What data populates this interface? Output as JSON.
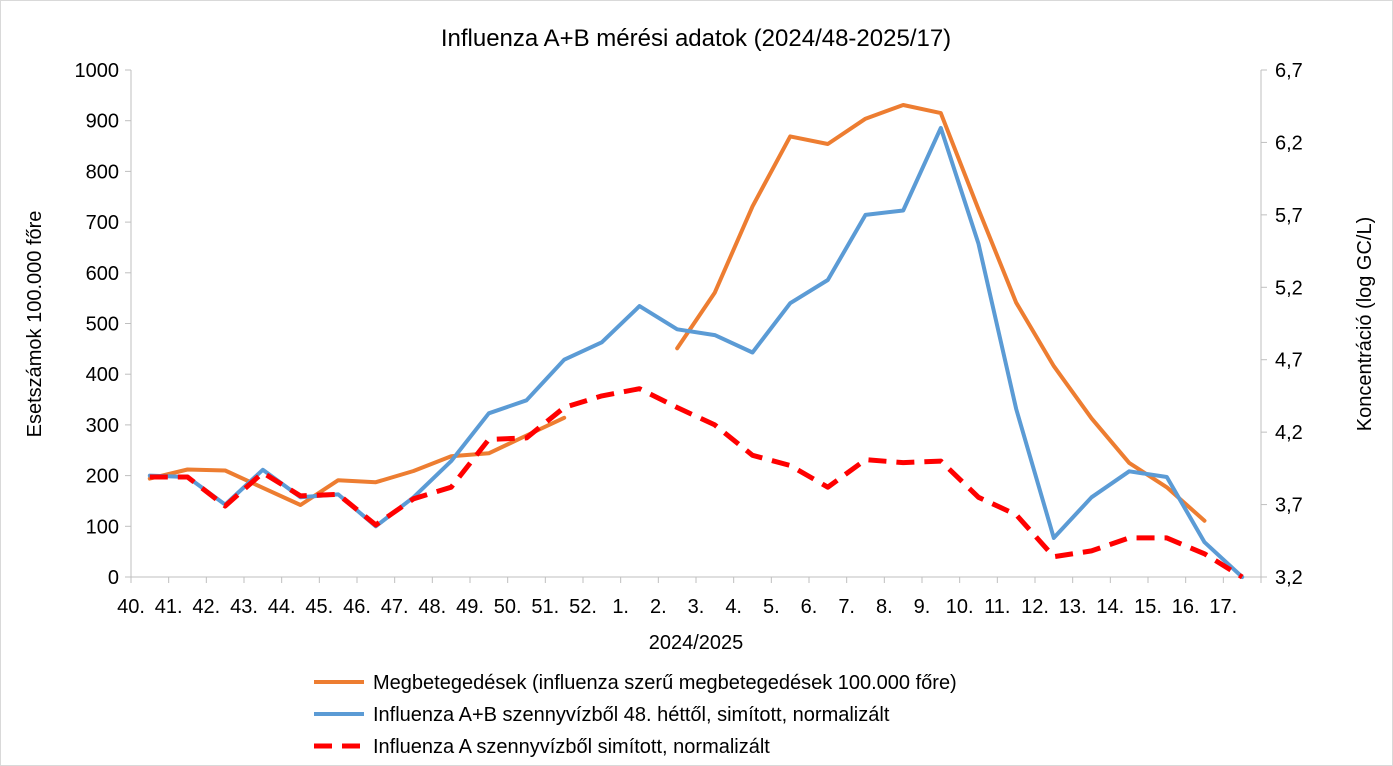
{
  "chart_data": {
    "type": "line",
    "title": "Influenza A+B mérési adatok (2024/48-2025/17)",
    "xlabel": "2024/2025",
    "ylabel": "Esetszámok 100.000 főre",
    "y2label": "Koncentráció (log GC/L)",
    "categories": [
      "40.",
      "41.",
      "42.",
      "43.",
      "44.",
      "45.",
      "46.",
      "47.",
      "48.",
      "49.",
      "50.",
      "51.",
      "52.",
      "1.",
      "2.",
      "3.",
      "4.",
      "5.",
      "6.",
      "7.",
      "8.",
      "9.",
      "10.",
      "11.",
      "12.",
      "13.",
      "14.",
      "15.",
      "16.",
      "17."
    ],
    "y_ticks": [
      "0",
      "100",
      "200",
      "300",
      "400",
      "500",
      "600",
      "700",
      "800",
      "900",
      "1000"
    ],
    "y2_ticks": [
      "3,2",
      "3,7",
      "4,2",
      "4,7",
      "5,2",
      "5,7",
      "6,2",
      "6,7"
    ],
    "ylim": [
      0,
      1000
    ],
    "y2lim": [
      3.2,
      6.7
    ],
    "grid": false,
    "legend_position": "bottom",
    "series": [
      {
        "name": "Megbetegedések (influenza szerű megbetegedések 100.000 főre)",
        "axis": "left",
        "color": "#ED7D31",
        "dash": "solid",
        "values": [
          194,
          212,
          210,
          176,
          142,
          191,
          187,
          209,
          238,
          244,
          279,
          314,
          null,
          null,
          451,
          561,
          731,
          869,
          854,
          904,
          931,
          915,
          725,
          541,
          416,
          313,
          225,
          177,
          111,
          null
        ]
      },
      {
        "name": "Influenza A+B szennyvízből 48. héttől, simított, normalizált",
        "axis": "right",
        "color": "#5B9BD5",
        "dash": "solid",
        "values": [
          3.9,
          3.89,
          3.7,
          3.94,
          3.75,
          3.77,
          3.55,
          3.75,
          4.0,
          4.33,
          4.42,
          4.7,
          4.82,
          5.07,
          4.91,
          4.87,
          4.75,
          5.09,
          5.25,
          5.7,
          5.73,
          6.3,
          5.5,
          4.36,
          3.47,
          3.75,
          3.93,
          3.89,
          3.44,
          3.13
        ]
      },
      {
        "name": "Influenza A szennyvízből simított, normalizált",
        "axis": "right",
        "color": "#FF0000",
        "dash": "dashed",
        "values": [
          3.89,
          3.89,
          3.69,
          3.92,
          3.76,
          3.77,
          3.56,
          3.74,
          3.82,
          4.15,
          4.16,
          4.37,
          4.45,
          4.5,
          4.37,
          4.25,
          4.04,
          3.97,
          3.82,
          4.01,
          3.99,
          4.0,
          3.75,
          3.63,
          3.34,
          3.38,
          3.47,
          3.47,
          3.36,
          3.13
        ]
      }
    ]
  }
}
